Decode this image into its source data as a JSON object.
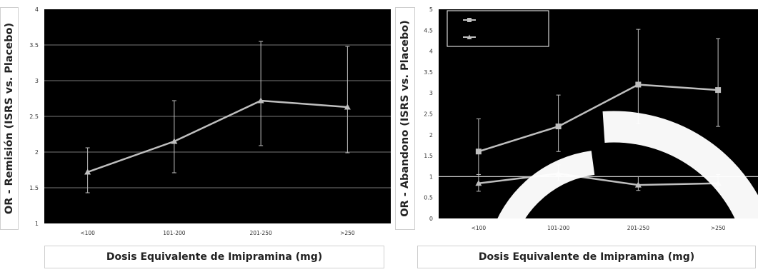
{
  "chart_data": [
    {
      "type": "line",
      "ylabel": "OR - Remisión (ISRS vs. Placebo)",
      "xlabel": "Dosis Equivalente de Imipramina (mg)",
      "categories": [
        "<100",
        "101-200",
        "201-250",
        ">250"
      ],
      "ylim": [
        1,
        4
      ],
      "yticks": [
        "1",
        "1.5",
        "2",
        "2.5",
        "3",
        "3.5",
        "4"
      ],
      "grid": true,
      "legend": false,
      "series": [
        {
          "values": [
            1.72,
            2.15,
            2.72,
            2.63
          ],
          "error_low": [
            1.43,
            1.71,
            2.09,
            1.99
          ],
          "error_high": [
            2.06,
            2.72,
            3.55,
            3.48
          ],
          "marker": "triangle"
        }
      ]
    },
    {
      "type": "line",
      "ylabel": "OR - Abandono (ISRS vs. Placebo)",
      "xlabel": "Dosis Equivalente de Imipramina (mg)",
      "categories": [
        "<100",
        "101-200",
        "201-250",
        ">250"
      ],
      "ylim": [
        0,
        5
      ],
      "yticks": [
        "0",
        "0.5",
        "1",
        "1.5",
        "2",
        "2.5",
        "3",
        "3.5",
        "4",
        "4.5",
        "5"
      ],
      "reference_line": 1,
      "grid": false,
      "legend": "top-left",
      "series": [
        {
          "values": [
            1.6,
            2.2,
            3.2,
            3.07
          ],
          "error_low": [
            1.05,
            1.6,
            2.27,
            2.2
          ],
          "error_high": [
            2.38,
            2.95,
            4.52,
            4.3
          ],
          "marker": "square"
        },
        {
          "values": [
            0.84,
            1.07,
            0.8,
            0.84
          ],
          "error_low": [
            0.65,
            0.9,
            0.67,
            0.7
          ],
          "error_high": [
            1.05,
            1.28,
            1.0,
            1.05
          ],
          "marker": "triangle"
        }
      ]
    }
  ],
  "colors": {
    "background": "#000000",
    "series": "#bfbfbf",
    "grid": "#505050"
  }
}
